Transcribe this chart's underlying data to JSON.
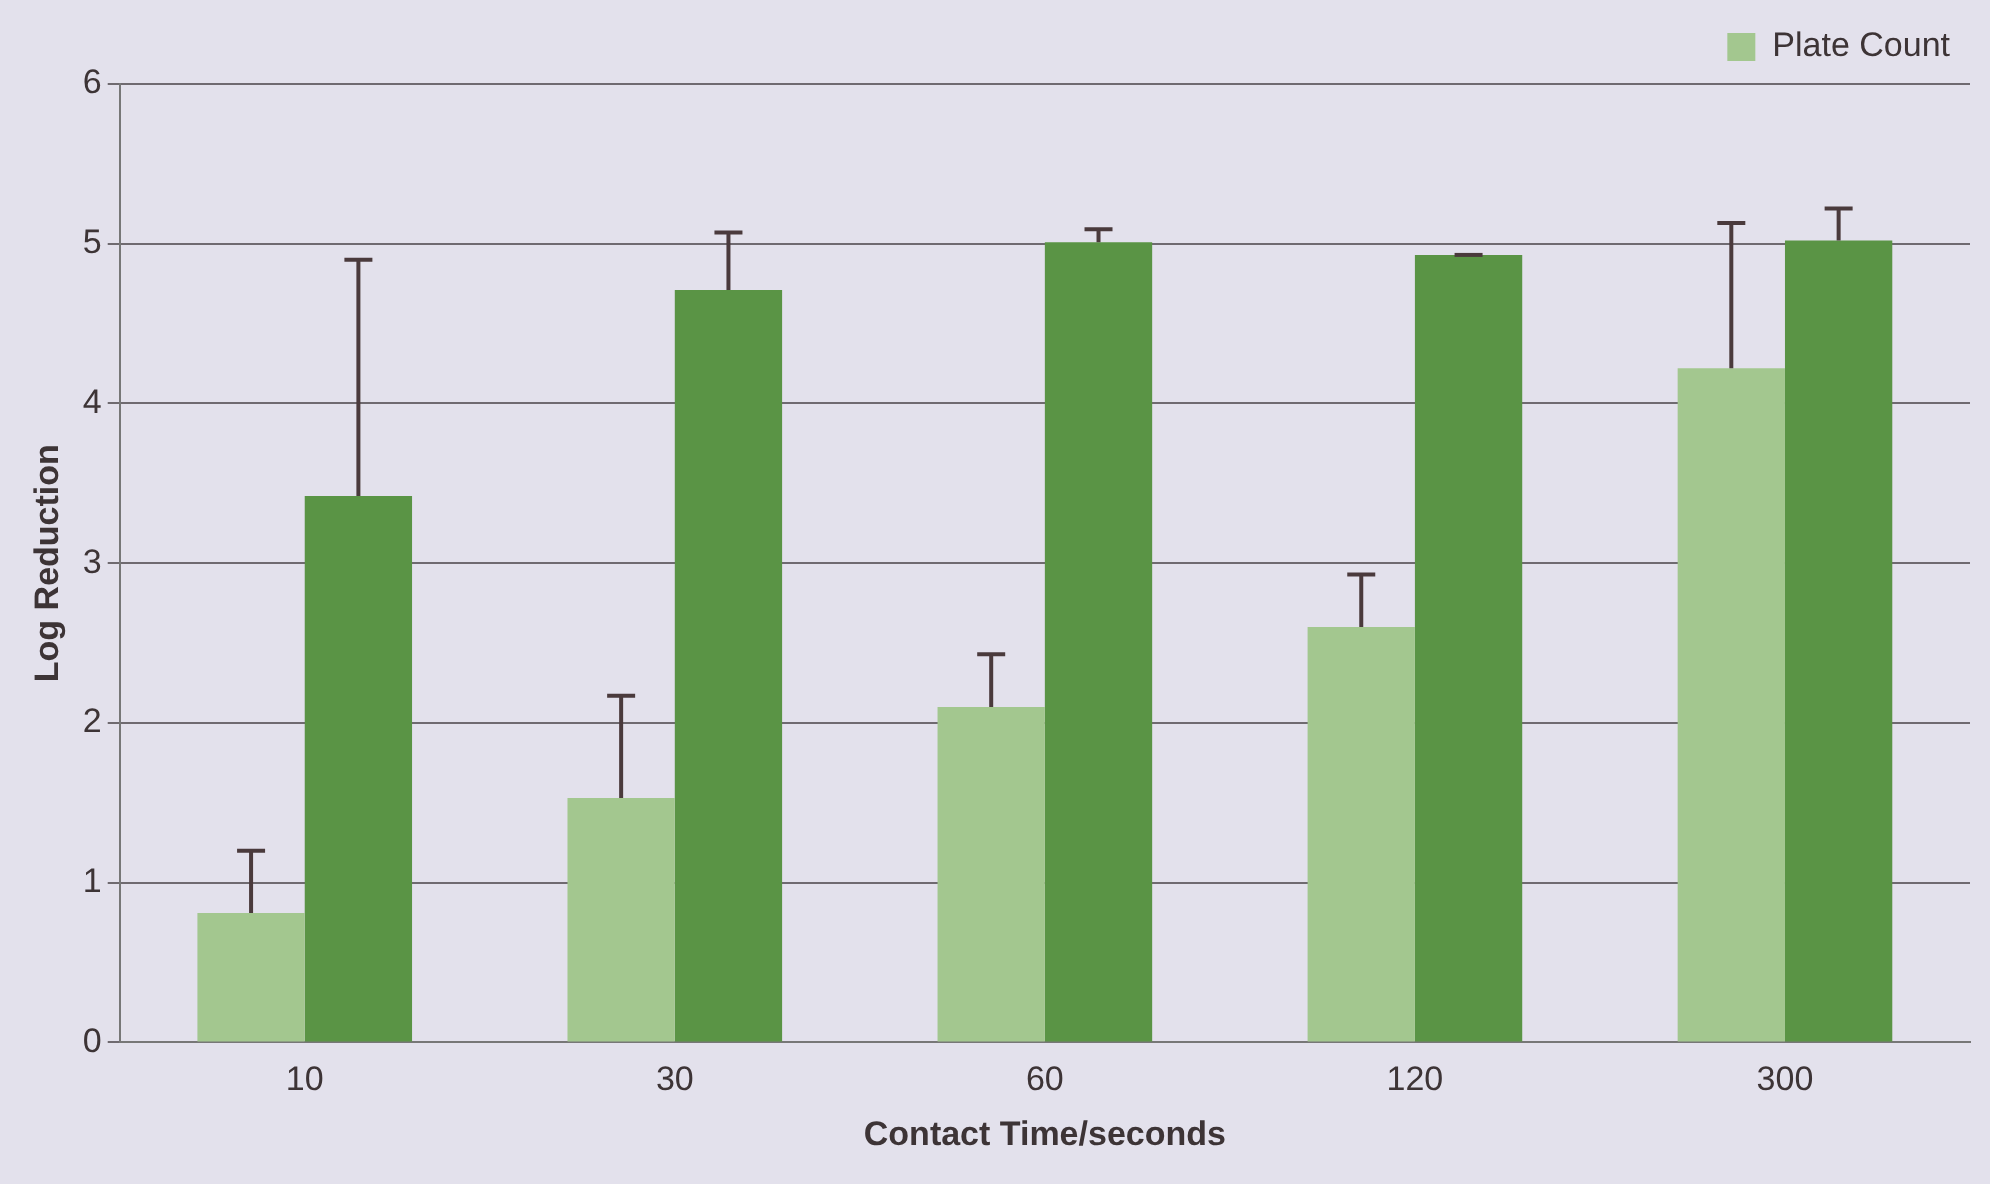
{
  "chart_data": {
    "type": "bar",
    "xlabel": "Contact Time/seconds",
    "ylabel": "Log Reduction",
    "categories": [
      "10",
      "30",
      "60",
      "120",
      "300"
    ],
    "series": [
      {
        "name": "Plate Count",
        "color": "#a3c78f",
        "values": [
          0.81,
          1.53,
          2.1,
          2.6,
          4.22
        ],
        "errors": [
          [
            0.81,
            1.2
          ],
          [
            1.53,
            2.17
          ],
          [
            2.1,
            2.43
          ],
          [
            2.6,
            2.93
          ],
          [
            4.22,
            5.13
          ]
        ]
      },
      {
        "color": "#5a9445",
        "values": [
          3.42,
          4.71,
          5.01,
          4.93,
          5.02
        ],
        "errors": [
          [
            3.42,
            4.9
          ],
          [
            4.71,
            5.07
          ],
          [
            5.01,
            5.09
          ],
          [
            4.93,
            4.93
          ],
          [
            5.02,
            5.22
          ]
        ]
      }
    ],
    "ylim": [
      0,
      6
    ],
    "yticks": [
      0,
      1,
      2,
      3,
      4,
      5,
      6
    ],
    "grid": "y",
    "legend": "top right"
  }
}
